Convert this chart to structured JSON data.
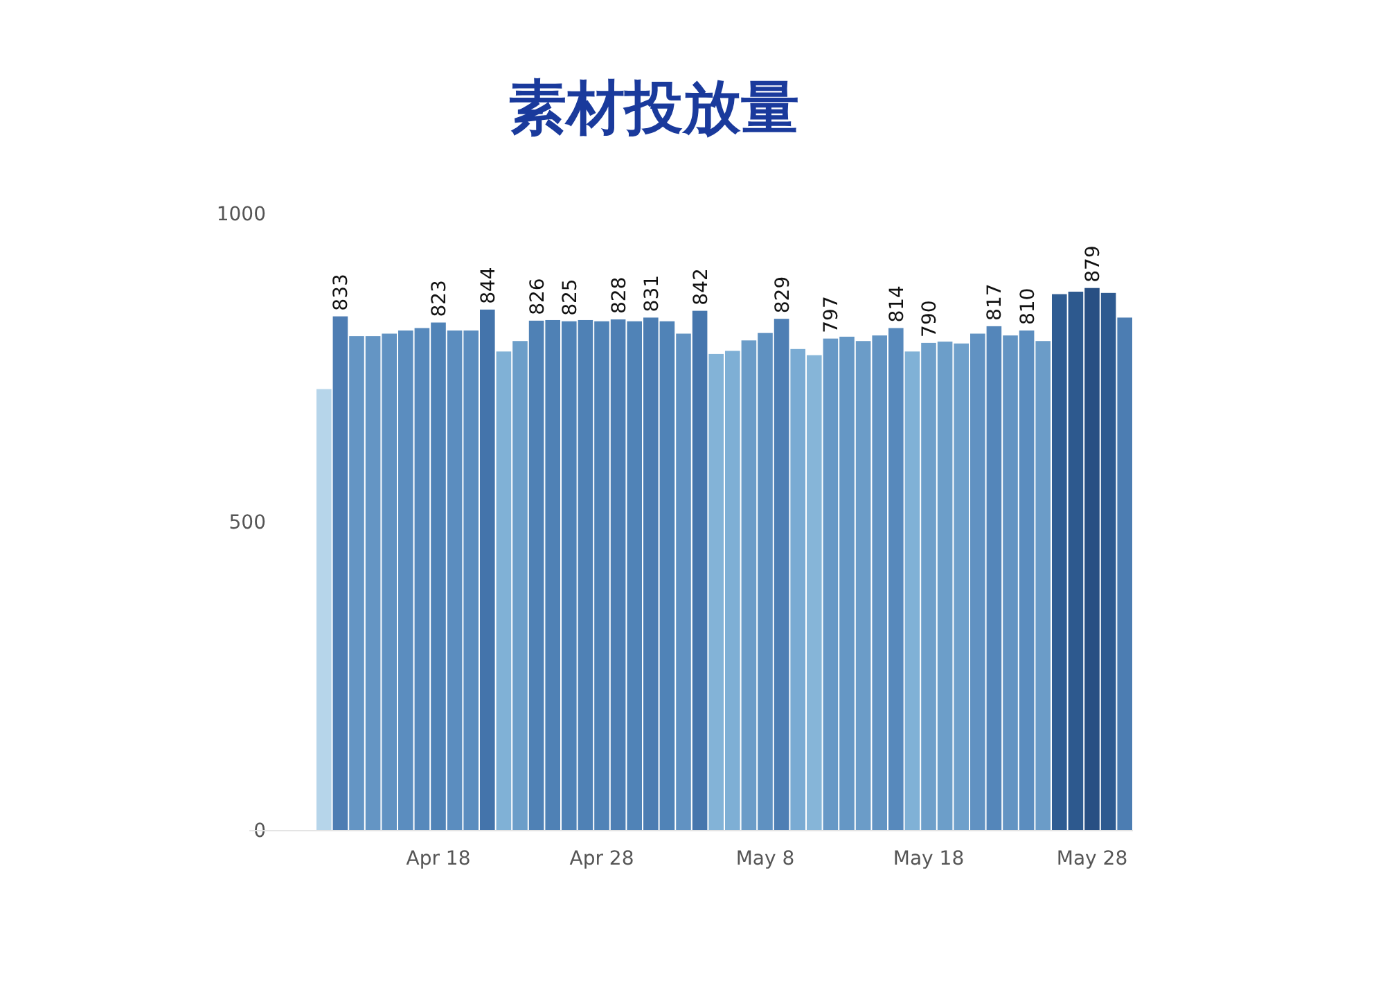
{
  "chart_data": {
    "type": "bar",
    "title": "素材投放量",
    "categories": [
      null,
      null,
      null,
      null,
      null,
      null,
      null,
      "Apr 18",
      null,
      null,
      null,
      null,
      null,
      null,
      null,
      null,
      null,
      "Apr 28",
      null,
      null,
      null,
      null,
      null,
      null,
      null,
      null,
      null,
      "May 8",
      null,
      null,
      null,
      null,
      null,
      null,
      null,
      null,
      null,
      "May 18",
      null,
      null,
      null,
      null,
      null,
      null,
      null,
      null,
      null,
      "May 28",
      null,
      null
    ],
    "values": [
      715,
      833,
      801,
      801,
      805,
      810,
      814,
      823,
      810,
      810,
      844,
      776,
      793,
      826,
      827,
      825,
      827,
      825,
      828,
      825,
      831,
      825,
      805,
      842,
      772,
      777,
      794,
      806,
      829,
      780,
      770,
      797,
      800,
      793,
      802,
      814,
      776,
      790,
      792,
      789,
      805,
      817,
      802,
      810,
      793,
      869,
      873,
      879,
      871,
      831
    ],
    "value_labels": [
      null,
      "833",
      null,
      null,
      null,
      null,
      null,
      "823",
      null,
      null,
      "844",
      null,
      null,
      "826",
      null,
      "825",
      null,
      null,
      "828",
      null,
      "831",
      null,
      null,
      "842",
      null,
      null,
      null,
      null,
      "829",
      null,
      null,
      "797",
      null,
      null,
      null,
      "814",
      null,
      "790",
      null,
      null,
      null,
      "817",
      null,
      "810",
      null,
      null,
      null,
      "879",
      null,
      null
    ],
    "colors": [
      "#b6d5ea",
      "#4e7db3",
      "#6495c4",
      "#6495c4",
      "#6192c2",
      "#5b8dbf",
      "#5789bc",
      "#5083b7",
      "#5b8dbf",
      "#5b8dbf",
      "#4474ab",
      "#80b1d6",
      "#6c9ec9",
      "#4f81b5",
      "#4f81b5",
      "#5083b7",
      "#4f81b5",
      "#5083b7",
      "#4e7fb4",
      "#5083b7",
      "#4c7db2",
      "#5083b7",
      "#6192c2",
      "#4676ad",
      "#83b3d7",
      "#7eafd5",
      "#6b9cc8",
      "#5f91c1",
      "#4e7fb4",
      "#7aabd3",
      "#86b5d8",
      "#6798c6",
      "#6597c5",
      "#6b9cc8",
      "#6394c3",
      "#5789bc",
      "#80b1d6",
      "#6e9fca",
      "#6c9ec9",
      "#6fa0cb",
      "#6192c2",
      "#5486ba",
      "#6394c3",
      "#5b8dbf",
      "#6b9cc8",
      "#2f5c92",
      "#2d598e",
      "#284f83",
      "#2e5a90",
      "#4c7db2"
    ],
    "ylim": [
      0,
      1000
    ],
    "yticks": [
      0,
      500,
      1000
    ]
  }
}
